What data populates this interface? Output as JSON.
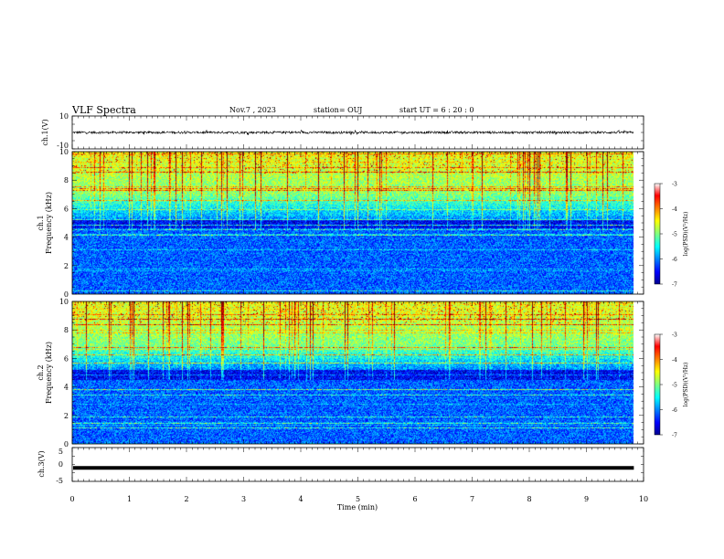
{
  "header": {
    "title": "VLF Spectra",
    "date": "Nov.7 , 2023",
    "station": "station= OUJ",
    "start": "start  UT =  6 : 20 : 0"
  },
  "chart_data": [
    {
      "type": "line",
      "panel": "ch1-waveform",
      "ylabel": "ch.1(V)",
      "ylim": [
        -10,
        10
      ],
      "yticks": [
        10,
        -10
      ],
      "xlim": [
        0,
        10
      ],
      "data_extent_x": [
        0,
        9.83
      ],
      "description_values": {
        "mean": 0,
        "amplitude_range": [
          -1.5,
          1.5
        ]
      }
    },
    {
      "type": "heatmap",
      "panel": "ch1-spectrogram",
      "ylabel": "ch.1\nFrequency (kHz)",
      "ylim": [
        0,
        10
      ],
      "yticks": [
        0,
        2,
        4,
        6,
        8,
        10
      ],
      "xlim": [
        0,
        10
      ],
      "data_extent_x": [
        0,
        9.83
      ],
      "colorbar": {
        "label": "log(PSD)(V²/Hz)",
        "range": [
          -7,
          -3
        ],
        "ticks": [
          -3,
          -4,
          -5,
          -6,
          -7
        ]
      }
    },
    {
      "type": "heatmap",
      "panel": "ch2-spectrogram",
      "ylabel": "ch.2\nFrequency (kHz)",
      "ylim": [
        0,
        10
      ],
      "yticks": [
        0,
        2,
        4,
        6,
        8,
        10
      ],
      "xlim": [
        0,
        10
      ],
      "data_extent_x": [
        0,
        9.83
      ],
      "colorbar": {
        "label": "log(PSD)(V²/Hz)",
        "range": [
          -7,
          -3
        ],
        "ticks": [
          -3,
          -4,
          -5,
          -6,
          -7
        ]
      }
    },
    {
      "type": "line",
      "panel": "ch3-waveform",
      "ylabel": "ch.3(V)",
      "ylim": [
        -5,
        5
      ],
      "yticks": [
        5,
        0,
        -5
      ],
      "xlim": [
        0,
        10
      ],
      "data_extent_x": [
        0,
        9.83
      ],
      "description_values": {
        "constant_level": -1.0
      }
    }
  ],
  "axes": {
    "xlabel": "Time (min)",
    "xticks": [
      0,
      1,
      2,
      3,
      4,
      5,
      6,
      7,
      8,
      9,
      10
    ]
  },
  "labels": {
    "ch1_v": "ch.1(V)",
    "ch1_freq_a": "ch.1",
    "ch1_freq_b": "Frequency (kHz)",
    "ch2_freq_a": "ch.2",
    "ch2_freq_b": "Frequency (kHz)",
    "ch3_v": "ch.3(V)",
    "cbar_label": "log(PSD)(V²/Hz)"
  },
  "colors": {
    "jet": [
      "#00008f",
      "#0000ff",
      "#0080ff",
      "#00ffff",
      "#80ff80",
      "#ffff00",
      "#ff8000",
      "#ff0000",
      "#800000"
    ]
  }
}
